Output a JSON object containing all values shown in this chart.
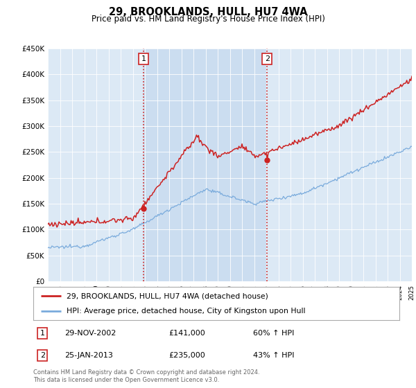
{
  "title": "29, BROOKLANDS, HULL, HU7 4WA",
  "subtitle": "Price paid vs. HM Land Registry's House Price Index (HPI)",
  "red_label": "29, BROOKLANDS, HULL, HU7 4WA (detached house)",
  "blue_label": "HPI: Average price, detached house, City of Kingston upon Hull",
  "marker1_date": "29-NOV-2002",
  "marker1_price": 141000,
  "marker1_text": "60% ↑ HPI",
  "marker2_date": "25-JAN-2013",
  "marker2_price": 235000,
  "marker2_text": "43% ↑ HPI",
  "footer": "Contains HM Land Registry data © Crown copyright and database right 2024.\nThis data is licensed under the Open Government Licence v3.0.",
  "ylim": [
    0,
    450000
  ],
  "plot_bg": "#dce9f5",
  "shade_color": "#c5d9ee",
  "red_color": "#cc2222",
  "blue_color": "#7aabdc",
  "marker1_year": 2002.9,
  "marker2_year": 2013.07,
  "xlim_start": 1995,
  "xlim_end": 2025
}
